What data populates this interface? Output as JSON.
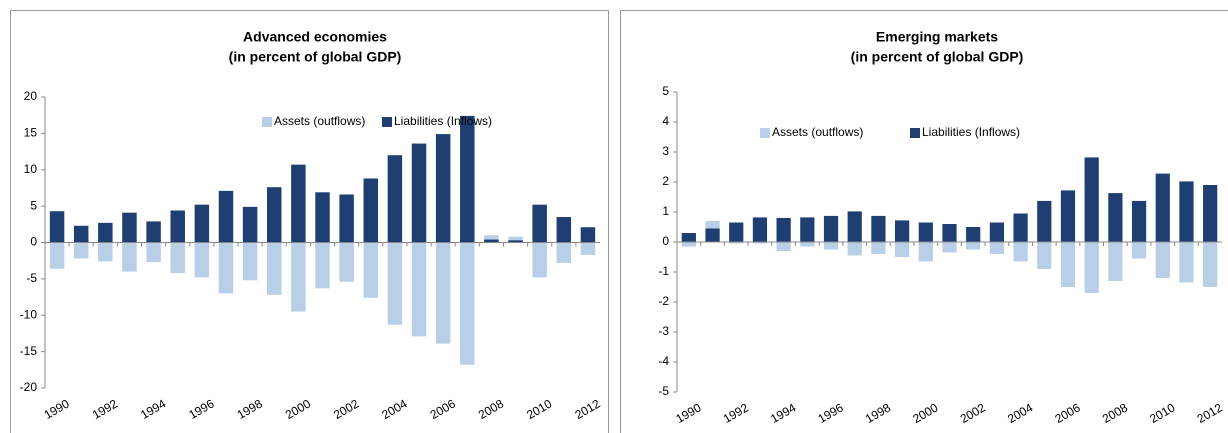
{
  "chart_data": [
    {
      "type": "bar",
      "title": "Advanced economies",
      "subtitle": "(in percent of global GDP)",
      "categories": [
        "1990",
        null,
        "1992",
        null,
        "1994",
        null,
        "1996",
        null,
        "1998",
        null,
        "2000",
        null,
        "2002",
        null,
        "2004",
        null,
        "2006",
        null,
        "2008",
        null,
        "2010",
        null,
        "2012"
      ],
      "series": [
        {
          "name": "Assets (outflows)",
          "color": "#b9cfe8",
          "values": [
            -3.6,
            -2.2,
            -2.6,
            -4.0,
            -2.7,
            -4.2,
            -4.8,
            -7.0,
            -5.2,
            -7.2,
            -9.5,
            -6.3,
            -5.4,
            -7.6,
            -11.3,
            -12.9,
            -13.9,
            -16.8,
            1.0,
            0.8,
            -4.8,
            -2.8,
            -1.7
          ]
        },
        {
          "name": "Liabilities (Inflows)",
          "color": "#1f3f73",
          "values": [
            4.3,
            2.3,
            2.7,
            4.1,
            2.9,
            4.4,
            5.2,
            7.1,
            4.9,
            7.6,
            10.7,
            6.9,
            6.6,
            8.8,
            12.0,
            13.6,
            14.9,
            17.4,
            0.4,
            0.3,
            5.2,
            3.5,
            2.1
          ]
        }
      ],
      "ylim": [
        -20,
        20
      ],
      "yticks": [
        -20,
        -15,
        -10,
        -5,
        0,
        5,
        10,
        15,
        20
      ],
      "grid": false
    },
    {
      "type": "bar",
      "title": "Emerging markets",
      "subtitle": "(in percent of global GDP)",
      "categories": [
        "1990",
        null,
        "1992",
        null,
        "1994",
        null,
        "1996",
        null,
        "1998",
        null,
        "2000",
        null,
        "2002",
        null,
        "2004",
        null,
        "2006",
        null,
        "2008",
        null,
        "2010",
        null,
        "2012"
      ],
      "series": [
        {
          "name": "Assets (outflows)",
          "color": "#b9cfe8",
          "values": [
            -0.15,
            0.7,
            -0.05,
            -0.05,
            -0.3,
            -0.15,
            -0.25,
            -0.45,
            -0.4,
            -0.5,
            -0.65,
            -0.35,
            -0.25,
            -0.4,
            -0.65,
            -0.9,
            -1.5,
            -1.7,
            -1.3,
            -0.55,
            -1.2,
            -1.35,
            -1.5
          ]
        },
        {
          "name": "Liabilities (Inflows)",
          "color": "#1f3f73",
          "values": [
            0.3,
            0.45,
            0.65,
            0.82,
            0.8,
            0.82,
            0.87,
            1.02,
            0.87,
            0.72,
            0.65,
            0.6,
            0.5,
            0.65,
            0.95,
            1.37,
            1.72,
            2.82,
            1.63,
            1.37,
            2.28,
            2.02,
            1.9
          ]
        }
      ],
      "ylim": [
        -5,
        5
      ],
      "yticks": [
        -5,
        -4,
        -3,
        -2,
        -1,
        0,
        1,
        2,
        3,
        4,
        5
      ],
      "grid": false
    }
  ]
}
